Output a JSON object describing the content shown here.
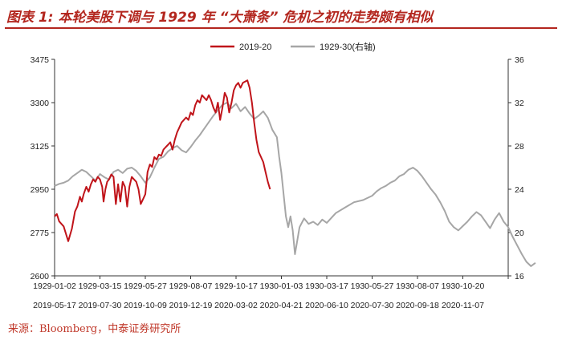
{
  "title": "图表 1:  本轮美股下调与 1929 年 “大萧条” 危机之初的走势颇有相似",
  "source": "来源：Bloomberg，中泰证券研究所",
  "colors": {
    "series_2019": "#c0141a",
    "series_1929": "#a6a6a6",
    "title": "#b3261e"
  },
  "chart_data": {
    "type": "line",
    "legend_position": "top-center",
    "grid": false,
    "y_left": {
      "min": 2600,
      "max": 3475,
      "ticks": [
        "2600",
        "2775",
        "2950",
        "3125",
        "3300",
        "3475"
      ]
    },
    "y_right": {
      "min": 16,
      "max": 36,
      "ticks": [
        "16",
        "20",
        "24",
        "28",
        "32",
        "36"
      ]
    },
    "x_top_labels": [
      "1929-01-02",
      "1929-03-15",
      "1929-05-27",
      "1929-08-07",
      "1929-10-17",
      "1930-01-03",
      "1930-03-17",
      "1930-05-27",
      "1930-08-07",
      "1930-10-20"
    ],
    "x_bottom_labels": [
      "2019-05-17",
      "2019-07-30",
      "2019-10-09",
      "2019-12-19",
      "2020-03-02",
      "2020-04-21",
      "2020-06-10",
      "2020-07-30",
      "2020-09-18",
      "2020-11-07"
    ],
    "series": [
      {
        "name": "2019-20",
        "axis": "left",
        "x": [
          0.0,
          0.05,
          0.1,
          0.2,
          0.3,
          0.38,
          0.45,
          0.5,
          0.56,
          0.6,
          0.64,
          0.7,
          0.75,
          0.8,
          0.85,
          0.9,
          0.95,
          1.0,
          1.05,
          1.08,
          1.12,
          1.16,
          1.2,
          1.25,
          1.3,
          1.35,
          1.4,
          1.45,
          1.5,
          1.55,
          1.6,
          1.65,
          1.7,
          1.75,
          1.8,
          1.85,
          1.9,
          1.95,
          2.0,
          2.05,
          2.1,
          2.15,
          2.2,
          2.25,
          2.3,
          2.35,
          2.4,
          2.45,
          2.5,
          2.55,
          2.6,
          2.65,
          2.7,
          2.75,
          2.8,
          2.85,
          2.9,
          2.95,
          3.0,
          3.05,
          3.1,
          3.15,
          3.2,
          3.25,
          3.3,
          3.35,
          3.4,
          3.45,
          3.5,
          3.55,
          3.6,
          3.65,
          3.7,
          3.75,
          3.8,
          3.85,
          3.9,
          3.95,
          4.0,
          4.05,
          4.1,
          4.15,
          4.2,
          4.25,
          4.3,
          4.35,
          4.4,
          4.45,
          4.5,
          4.55,
          4.6,
          4.65,
          4.7,
          4.75
        ],
        "values": [
          2840,
          2850,
          2820,
          2800,
          2740,
          2790,
          2860,
          2880,
          2920,
          2900,
          2930,
          2960,
          2940,
          2970,
          2990,
          2980,
          3000,
          2990,
          2960,
          2900,
          2950,
          2980,
          2990,
          3010,
          3000,
          2890,
          2970,
          2900,
          2980,
          2960,
          2880,
          2960,
          3000,
          2990,
          2980,
          2950,
          2890,
          2910,
          2930,
          3020,
          3050,
          3040,
          3080,
          3070,
          3090,
          3085,
          3110,
          3120,
          3130,
          3140,
          3110,
          3150,
          3180,
          3200,
          3220,
          3230,
          3240,
          3230,
          3260,
          3250,
          3290,
          3310,
          3300,
          3330,
          3320,
          3310,
          3330,
          3310,
          3280,
          3260,
          3300,
          3230,
          3280,
          3340,
          3320,
          3260,
          3300,
          3350,
          3370,
          3380,
          3360,
          3380,
          3385,
          3390,
          3360,
          3300,
          3220,
          3150,
          3100,
          3080,
          3060,
          3020,
          2980,
          2950
        ]
      },
      {
        "name": "1929-30(右轴)",
        "axis": "right",
        "x": [
          0.0,
          0.1,
          0.2,
          0.3,
          0.4,
          0.5,
          0.6,
          0.7,
          0.8,
          0.9,
          1.0,
          1.1,
          1.2,
          1.3,
          1.4,
          1.5,
          1.6,
          1.7,
          1.8,
          1.9,
          2.0,
          2.1,
          2.2,
          2.3,
          2.4,
          2.5,
          2.6,
          2.7,
          2.8,
          2.9,
          3.0,
          3.1,
          3.2,
          3.3,
          3.4,
          3.5,
          3.6,
          3.7,
          3.8,
          3.9,
          4.0,
          4.1,
          4.2,
          4.3,
          4.4,
          4.5,
          4.6,
          4.7,
          4.8,
          4.9,
          4.95,
          5.0,
          5.05,
          5.1,
          5.15,
          5.2,
          5.25,
          5.3,
          5.4,
          5.5,
          5.6,
          5.7,
          5.8,
          5.9,
          6.0,
          6.2,
          6.4,
          6.6,
          6.8,
          7.0,
          7.1,
          7.2,
          7.3,
          7.4,
          7.5,
          7.6,
          7.7,
          7.8,
          7.9,
          8.0,
          8.1,
          8.2,
          8.3,
          8.4,
          8.5,
          8.6,
          8.7,
          8.8,
          8.9,
          9.0,
          9.1,
          9.2,
          9.3,
          9.4,
          9.5,
          9.6,
          9.7,
          9.8,
          9.9,
          10.0,
          10.1,
          10.2,
          10.3,
          10.4,
          10.5,
          10.6
        ],
        "values": [
          24.3,
          24.5,
          24.6,
          24.8,
          25.2,
          25.5,
          25.8,
          25.6,
          25.2,
          24.8,
          25.4,
          25.1,
          24.9,
          25.6,
          25.8,
          25.5,
          25.9,
          26.0,
          25.7,
          25.2,
          24.6,
          25.1,
          26.0,
          26.8,
          27.0,
          27.5,
          27.8,
          28.0,
          27.6,
          27.4,
          27.9,
          28.5,
          29.0,
          29.6,
          30.2,
          30.8,
          31.3,
          31.8,
          32.0,
          31.5,
          31.9,
          31.2,
          31.6,
          31.0,
          30.5,
          30.8,
          31.2,
          30.6,
          29.5,
          28.8,
          27.0,
          25.5,
          23.5,
          21.5,
          20.5,
          21.5,
          20.2,
          18.0,
          20.5,
          21.3,
          20.8,
          21.0,
          20.7,
          21.2,
          20.9,
          21.8,
          22.3,
          22.8,
          23.0,
          23.4,
          23.8,
          24.1,
          24.3,
          24.6,
          24.8,
          25.2,
          25.4,
          25.8,
          26.0,
          25.7,
          25.2,
          24.6,
          24.0,
          23.5,
          22.8,
          22.0,
          21.0,
          20.5,
          20.2,
          20.6,
          21.0,
          21.5,
          21.9,
          21.6,
          21.0,
          20.4,
          21.2,
          21.8,
          21.0,
          20.5,
          19.6,
          18.8,
          18.0,
          17.3,
          16.9,
          17.2
        ]
      }
    ]
  }
}
